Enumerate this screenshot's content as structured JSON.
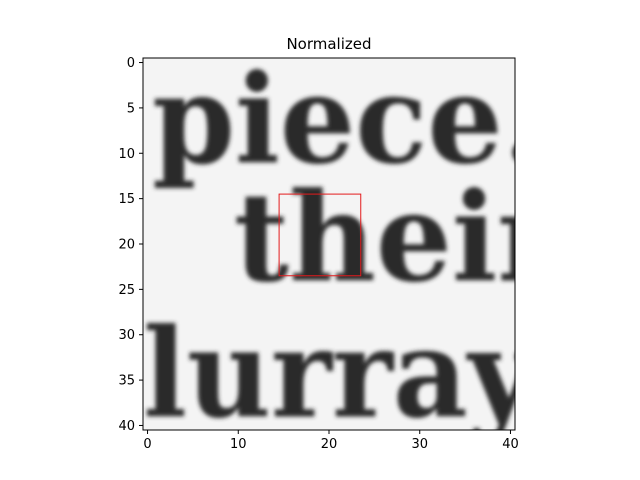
{
  "chart_data": {
    "type": "heatmap",
    "title": "Normalized",
    "xlabel": "",
    "ylabel": "",
    "colormap": "gray",
    "image_size": [
      41,
      41
    ],
    "xlim": [
      -0.5,
      40.5
    ],
    "ylim": [
      40.5,
      -0.5
    ],
    "x_ticks": [
      0,
      10,
      20,
      30,
      40
    ],
    "y_ticks": [
      0,
      5,
      10,
      15,
      20,
      25,
      30,
      35,
      40
    ],
    "x_tick_labels": [
      "0",
      "10",
      "20",
      "30",
      "40"
    ],
    "y_tick_labels": [
      "0",
      "5",
      "10",
      "15",
      "20",
      "25",
      "30",
      "35",
      "40"
    ],
    "image_text_rows": [
      {
        "text": "piece.",
        "x_start": 0.5,
        "baseline_row": 11
      },
      {
        "text": "their",
        "x_start": 9.5,
        "baseline_row": 24
      },
      {
        "text": "lurray",
        "x_start": -0.5,
        "baseline_row": 39
      }
    ],
    "highlight_box": {
      "x": [
        14.5,
        23.5
      ],
      "y": [
        14.5,
        23.5
      ],
      "color": "#e31a1c"
    }
  }
}
